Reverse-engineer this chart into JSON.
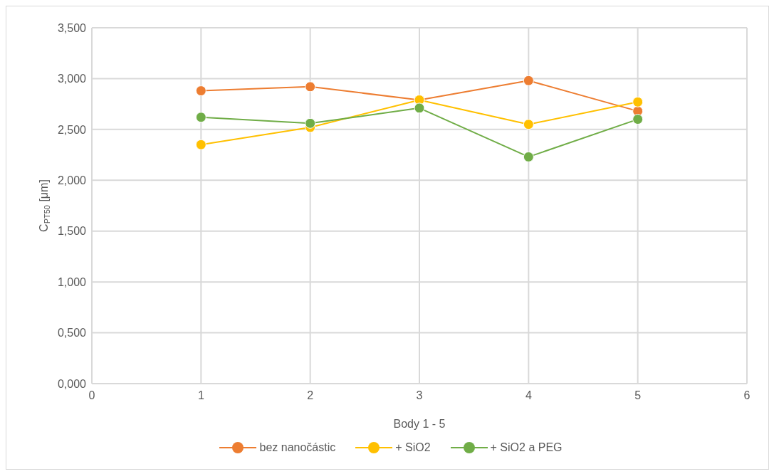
{
  "chart_data": {
    "type": "line",
    "xlabel": "Body 1 - 5",
    "ylabel": "C$_{PT50}$ [μm]",
    "x": [
      1,
      2,
      3,
      4,
      5
    ],
    "series": [
      {
        "name": "bez nanočástic",
        "color": "#ed7d31",
        "values": [
          2.88,
          2.92,
          2.79,
          2.98,
          2.68
        ]
      },
      {
        "name": "+ SiO2",
        "color": "#ffc000",
        "values": [
          2.35,
          2.52,
          2.79,
          2.55,
          2.77
        ]
      },
      {
        "name": "+ SiO2 a PEG",
        "color": "#70ad47",
        "values": [
          2.62,
          2.56,
          2.71,
          2.23,
          2.6
        ]
      }
    ],
    "xlim": [
      0,
      6
    ],
    "xticks": [
      0,
      1,
      2,
      3,
      4,
      5,
      6
    ],
    "ylim": [
      0,
      3.5
    ],
    "yticks": [
      {
        "value": 0,
        "label": "0,000"
      },
      {
        "value": 0.5,
        "label": "0,500"
      },
      {
        "value": 1,
        "label": "1,000"
      },
      {
        "value": 1.5,
        "label": "1,500"
      },
      {
        "value": 2,
        "label": "2,000"
      },
      {
        "value": 2.5,
        "label": "2,500"
      },
      {
        "value": 3,
        "label": "3,000"
      },
      {
        "value": 3.5,
        "label": "3,500"
      }
    ],
    "grid": true,
    "legend": "bottom",
    "marker": "circle",
    "line_style": "solid"
  }
}
